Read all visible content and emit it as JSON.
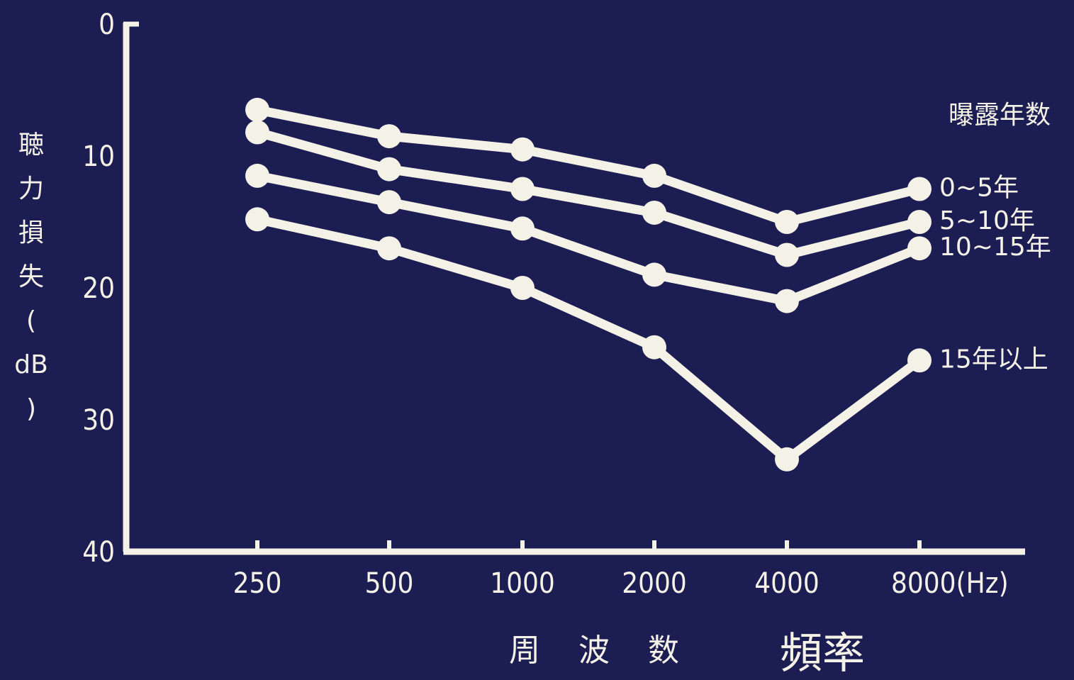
{
  "chart_data": {
    "type": "line",
    "categories": [
      "250",
      "500",
      "1000",
      "2000",
      "4000",
      "8000(Hz)"
    ],
    "y_ticks": [
      "0",
      "10",
      "20",
      "30",
      "40"
    ],
    "ylim": [
      0,
      40
    ],
    "y_inverted": true,
    "ylabel_chars": [
      "聴",
      "力",
      "損",
      "失",
      "(",
      "dB",
      ")"
    ],
    "xlabel_chars": [
      "周",
      "波",
      "数"
    ],
    "annotation": "頻率",
    "legend_title": "曝露年数",
    "series": [
      {
        "name": "0~5年",
        "values": [
          6.5,
          8.5,
          9.5,
          11.5,
          15,
          12.5
        ]
      },
      {
        "name": "5~10年",
        "values": [
          8.2,
          11,
          12.5,
          14.3,
          17.5,
          15
        ]
      },
      {
        "name": "10~15年",
        "values": [
          11.5,
          13.5,
          15.5,
          19,
          21,
          17
        ]
      },
      {
        "name": "15年以上",
        "values": [
          14.8,
          17,
          20,
          24.5,
          33,
          25.5
        ]
      }
    ],
    "colors": {
      "background": "#1c1d52",
      "line": "#f4f1e6"
    },
    "grid": false,
    "legend_placement": "right"
  }
}
